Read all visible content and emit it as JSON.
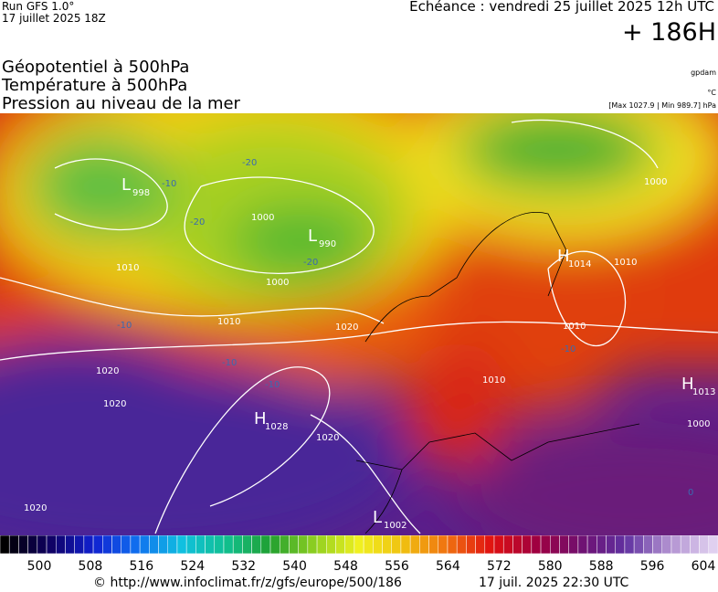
{
  "header": {
    "run": "Run GFS 1.0°",
    "run_date": "17 juillet 2025 18Z",
    "echeance": "Echéance : vendredi 25 juillet 2025 12h UTC",
    "lead": "+ 186H"
  },
  "fields": [
    "Géopotentiel à 500hPa",
    "Température à 500hPa",
    "Pression au niveau de la mer"
  ],
  "units": {
    "geopotential": "gpdam",
    "temperature": "°C",
    "pressure": "[Max 1027.9 | Min 989.7] hPa"
  },
  "map": {
    "centers": [
      {
        "symbol": "L",
        "value": "998"
      },
      {
        "symbol": "L",
        "value": "990"
      },
      {
        "symbol": "H",
        "value": "1014"
      },
      {
        "symbol": "H",
        "value": "1028"
      },
      {
        "symbol": "H",
        "value": "1013"
      },
      {
        "symbol": "L",
        "value": "1002"
      }
    ],
    "isobar_labels": [
      "1010",
      "1010",
      "1020",
      "1020",
      "1020",
      "1020",
      "1000",
      "1000",
      "1010",
      "1010",
      "1000",
      "1000",
      "1020",
      "1010"
    ],
    "temperature_labels": [
      "-20",
      "-20",
      "-20",
      "-10",
      "-10",
      "-10",
      "-10",
      "-10",
      "0"
    ]
  },
  "colorbar": {
    "ticks": [
      "500",
      "508",
      "516",
      "524",
      "532",
      "540",
      "548",
      "556",
      "564",
      "572",
      "580",
      "588",
      "596",
      "604"
    ]
  },
  "footer": {
    "url": "© http://www.infoclimat.fr/z/gfs/europe/500/186",
    "date": "17 juil. 2025 22:30 UTC"
  }
}
